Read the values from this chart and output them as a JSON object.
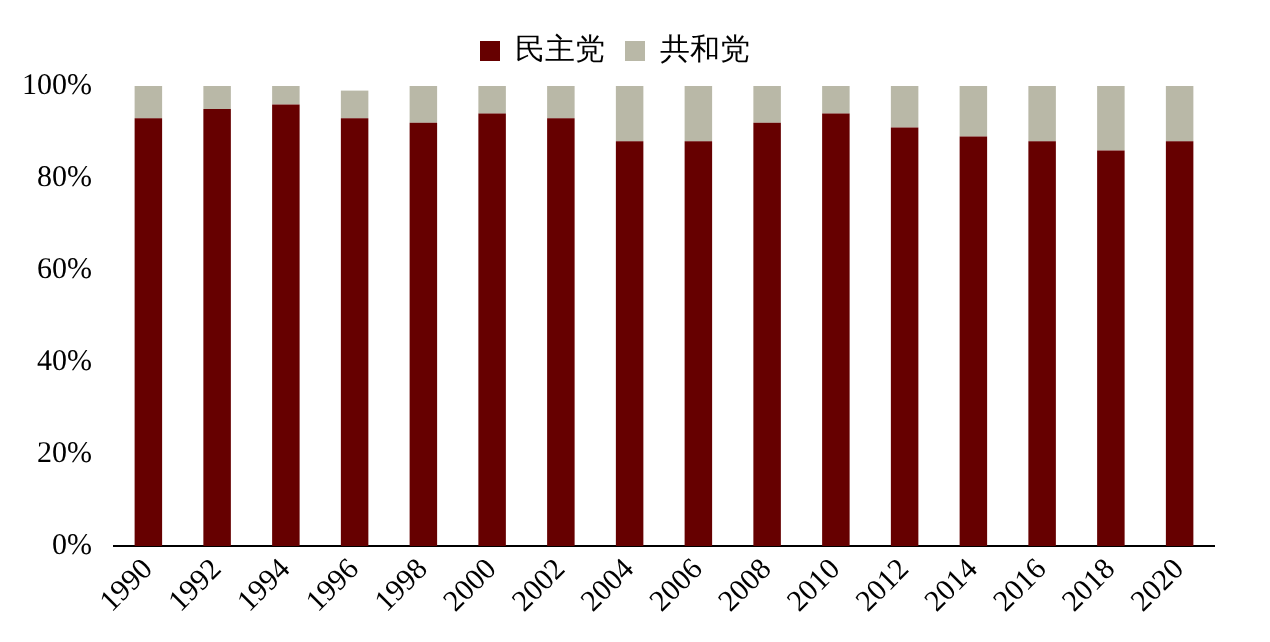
{
  "chart_data": {
    "type": "bar",
    "stacked": true,
    "categories": [
      "1990",
      "1992",
      "1994",
      "1996",
      "1998",
      "2000",
      "2002",
      "2004",
      "2006",
      "2008",
      "2010",
      "2012",
      "2014",
      "2016",
      "2018",
      "2020"
    ],
    "series": [
      {
        "name": "民主党",
        "color": "#660000",
        "values": [
          93,
          95,
          96,
          93,
          92,
          94,
          93,
          88,
          88,
          92,
          94,
          91,
          89,
          88,
          86,
          88
        ]
      },
      {
        "name": "共和党",
        "color": "#b9b8a7",
        "values": [
          7,
          5,
          4,
          6,
          8,
          6,
          7,
          12,
          12,
          8,
          6,
          9,
          11,
          12,
          14,
          12
        ]
      }
    ],
    "ylim": [
      0,
      100
    ],
    "yticks": [
      {
        "value": 0,
        "label": "0%"
      },
      {
        "value": 20,
        "label": "20%"
      },
      {
        "value": 40,
        "label": "40%"
      },
      {
        "value": 60,
        "label": "60%"
      },
      {
        "value": 80,
        "label": "80%"
      },
      {
        "value": 100,
        "label": "100%"
      }
    ],
    "grid": false,
    "legend": "top"
  }
}
